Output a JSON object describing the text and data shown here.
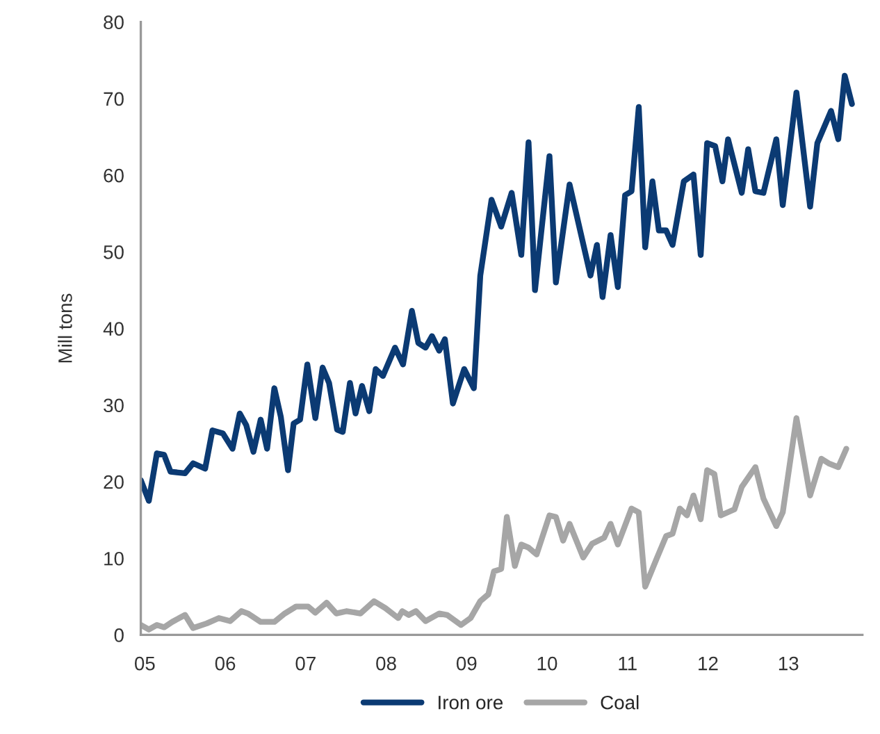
{
  "chart_data": {
    "type": "line",
    "ylabel": "Mill tons",
    "xlim": [
      2004.95,
      2013.92
    ],
    "xticks": [
      {
        "value": 2005,
        "label": "05"
      },
      {
        "value": 2006,
        "label": "06"
      },
      {
        "value": 2007,
        "label": "07"
      },
      {
        "value": 2008,
        "label": "08"
      },
      {
        "value": 2009,
        "label": "09"
      },
      {
        "value": 2010,
        "label": "10"
      },
      {
        "value": 2011,
        "label": "11"
      },
      {
        "value": 2012,
        "label": "12"
      },
      {
        "value": 2013,
        "label": "13"
      }
    ],
    "ylim": [
      0,
      80
    ],
    "yticks": [
      0,
      10,
      20,
      30,
      40,
      50,
      60,
      70,
      80
    ],
    "grid": false,
    "legend": "bottom",
    "marker": "none",
    "line_style": "solid",
    "series": [
      {
        "name": "Iron ore",
        "color": "#0b3a73",
        "x": [
          2004.95,
          2005.05,
          2005.15,
          2005.24,
          2005.32,
          2005.5,
          2005.6,
          2005.75,
          2005.84,
          2005.97,
          2006.09,
          2006.18,
          2006.26,
          2006.35,
          2006.44,
          2006.52,
          2006.61,
          2006.69,
          2006.78,
          2006.85,
          2006.93,
          2007.02,
          2007.12,
          2007.21,
          2007.29,
          2007.39,
          2007.46,
          2007.55,
          2007.62,
          2007.7,
          2007.79,
          2007.87,
          2007.96,
          2008.11,
          2008.21,
          2008.32,
          2008.4,
          2008.49,
          2008.57,
          2008.66,
          2008.73,
          2008.83,
          2008.97,
          2009.09,
          2009.17,
          2009.31,
          2009.43,
          2009.56,
          2009.68,
          2009.77,
          2009.85,
          2010.03,
          2010.11,
          2010.28,
          2010.54,
          2010.62,
          2010.69,
          2010.79,
          2010.88,
          2010.97,
          2011.05,
          2011.14,
          2011.22,
          2011.31,
          2011.39,
          2011.48,
          2011.56,
          2011.7,
          2011.82,
          2011.91,
          2011.99,
          2012.09,
          2012.18,
          2012.25,
          2012.42,
          2012.5,
          2012.59,
          2012.69,
          2012.85,
          2012.93,
          2013.1,
          2013.27,
          2013.36,
          2013.53,
          2013.62,
          2013.7,
          2013.79
        ],
        "values": [
          20.2,
          17.5,
          23.7,
          23.5,
          21.3,
          21.1,
          22.4,
          21.7,
          26.7,
          26.3,
          24.3,
          28.9,
          27.4,
          23.9,
          28.1,
          24.3,
          32.2,
          28.5,
          21.5,
          27.6,
          28.1,
          35.3,
          28.3,
          34.9,
          32.9,
          26.8,
          26.5,
          32.9,
          28.9,
          32.5,
          29.2,
          34.7,
          33.8,
          37.5,
          35.3,
          42.3,
          38.1,
          37.5,
          39.0,
          37.1,
          38.6,
          30.2,
          34.7,
          32.2,
          46.9,
          56.8,
          53.3,
          57.7,
          49.6,
          64.3,
          45.0,
          62.5,
          46.0,
          58.8,
          46.9,
          50.9,
          44.1,
          52.2,
          45.4,
          57.4,
          57.9,
          68.9,
          50.6,
          59.2,
          52.8,
          52.8,
          50.9,
          59.2,
          60.1,
          49.6,
          64.2,
          63.8,
          59.2,
          64.7,
          57.7,
          63.4,
          57.9,
          57.7,
          64.7,
          56.1,
          70.8,
          55.9,
          64.2,
          68.4,
          64.7,
          73.0,
          69.3
        ]
      },
      {
        "name": "Coal",
        "color": "#a6a6a6",
        "x": [
          2004.95,
          2005.05,
          2005.15,
          2005.24,
          2005.34,
          2005.5,
          2005.6,
          2005.77,
          2005.92,
          2006.06,
          2006.2,
          2006.28,
          2006.44,
          2006.61,
          2006.74,
          2006.88,
          2007.03,
          2007.12,
          2007.26,
          2007.38,
          2007.51,
          2007.68,
          2007.85,
          2007.99,
          2008.15,
          2008.2,
          2008.28,
          2008.37,
          2008.49,
          2008.66,
          2008.76,
          2008.93,
          2009.05,
          2009.17,
          2009.27,
          2009.34,
          2009.43,
          2009.5,
          2009.6,
          2009.68,
          2009.77,
          2009.87,
          2010.03,
          2010.11,
          2010.2,
          2010.28,
          2010.45,
          2010.56,
          2010.71,
          2010.79,
          2010.88,
          2011.05,
          2011.14,
          2011.22,
          2011.36,
          2011.48,
          2011.56,
          2011.65,
          2011.74,
          2011.82,
          2011.91,
          2011.99,
          2012.08,
          2012.16,
          2012.33,
          2012.42,
          2012.59,
          2012.69,
          2012.85,
          2012.93,
          2013.1,
          2013.27,
          2013.41,
          2013.5,
          2013.62,
          2013.72
        ],
        "values": [
          1.3,
          0.7,
          1.3,
          1.0,
          1.7,
          2.6,
          0.9,
          1.5,
          2.2,
          1.8,
          3.1,
          2.8,
          1.7,
          1.7,
          2.8,
          3.7,
          3.7,
          2.9,
          4.2,
          2.8,
          3.1,
          2.8,
          4.4,
          3.5,
          2.2,
          3.1,
          2.6,
          3.1,
          1.8,
          2.8,
          2.6,
          1.3,
          2.2,
          4.4,
          5.3,
          8.3,
          8.6,
          15.4,
          9.0,
          11.8,
          11.4,
          10.5,
          15.6,
          15.4,
          12.3,
          14.5,
          10.1,
          11.9,
          12.7,
          14.5,
          11.8,
          16.5,
          16.0,
          6.3,
          9.9,
          12.9,
          13.2,
          16.5,
          15.6,
          18.2,
          15.1,
          21.5,
          21.0,
          15.6,
          16.4,
          19.3,
          21.9,
          17.8,
          14.2,
          16.0,
          28.3,
          18.2,
          23.0,
          22.4,
          21.9,
          24.3
        ]
      }
    ]
  }
}
